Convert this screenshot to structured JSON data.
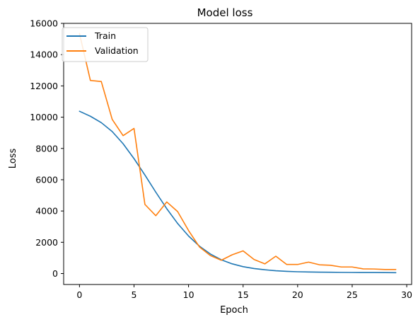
{
  "chart_data": {
    "type": "line",
    "title": "Model loss",
    "xlabel": "Epoch",
    "ylabel": "Loss",
    "xlim": [
      -1.45,
      30.45
    ],
    "ylim": [
      -700,
      16000
    ],
    "xticks": [
      0,
      5,
      10,
      15,
      20,
      25,
      30
    ],
    "yticks": [
      0,
      2000,
      4000,
      6000,
      8000,
      10000,
      12000,
      14000,
      16000
    ],
    "grid": false,
    "legend_position": "top-left",
    "x": [
      0,
      1,
      2,
      3,
      4,
      5,
      6,
      7,
      8,
      9,
      10,
      11,
      12,
      13,
      14,
      15,
      16,
      17,
      18,
      19,
      20,
      21,
      22,
      23,
      24,
      25,
      26,
      27,
      28,
      29
    ],
    "series": [
      {
        "name": "Train",
        "color": "#1f77b4",
        "values": [
          10380,
          10060,
          9650,
          9080,
          8300,
          7350,
          6300,
          5200,
          4150,
          3200,
          2400,
          1750,
          1250,
          880,
          620,
          440,
          320,
          240,
          180,
          140,
          115,
          100,
          90,
          85,
          75,
          70,
          65,
          65,
          60,
          55
        ]
      },
      {
        "name": "Validation",
        "color": "#ff7f0e",
        "values": [
          15350,
          12350,
          12280,
          9860,
          8820,
          9280,
          4420,
          3700,
          4580,
          3960,
          2750,
          1700,
          1150,
          850,
          1200,
          1450,
          900,
          620,
          1110,
          580,
          580,
          730,
          560,
          530,
          420,
          420,
          300,
          290,
          260,
          260
        ]
      }
    ]
  }
}
